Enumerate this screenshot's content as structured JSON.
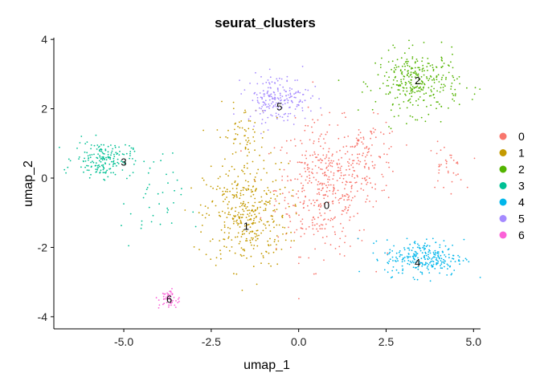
{
  "chart_data": {
    "type": "scatter",
    "title": "seurat_clusters",
    "xlabel": "umap_1",
    "ylabel": "umap_2",
    "xlim": [
      -7.0,
      5.2
    ],
    "ylim": [
      -4.35,
      4.05
    ],
    "x_ticks": [
      -5.0,
      -2.5,
      0.0,
      2.5,
      5.0
    ],
    "x_tick_labels": [
      "-5.0",
      "-2.5",
      "0.0",
      "2.5",
      "5.0"
    ],
    "y_ticks": [
      -4,
      -2,
      0,
      2,
      4
    ],
    "y_tick_labels": [
      "-4",
      "-2",
      "0",
      "2",
      "4"
    ],
    "grid": false,
    "legend_position": "right",
    "clusters": [
      {
        "name": "0",
        "color": "#F8766D",
        "label_x": 0.8,
        "label_y": -0.8
      },
      {
        "name": "1",
        "color": "#C49A00",
        "label_x": -1.5,
        "label_y": -1.4
      },
      {
        "name": "2",
        "color": "#53B400",
        "label_x": 3.4,
        "label_y": 2.8
      },
      {
        "name": "3",
        "color": "#00C094",
        "label_x": -5.0,
        "label_y": 0.45
      },
      {
        "name": "4",
        "color": "#00B6EB",
        "label_x": 3.4,
        "label_y": -2.45
      },
      {
        "name": "5",
        "color": "#A58AFF",
        "label_x": -0.55,
        "label_y": 2.05
      },
      {
        "name": "6",
        "color": "#FB61D7",
        "label_x": -3.7,
        "label_y": -3.5
      }
    ],
    "point_regions": [
      {
        "cluster": "0",
        "cx": 0.7,
        "cy": -0.3,
        "sx": 0.9,
        "sy": 1.25,
        "n": 420
      },
      {
        "cluster": "0",
        "cx": 2.0,
        "cy": 0.6,
        "sx": 0.6,
        "sy": 0.7,
        "n": 110
      },
      {
        "cluster": "0",
        "cx": 4.2,
        "cy": 0.3,
        "sx": 0.35,
        "sy": 0.45,
        "n": 35
      },
      {
        "cluster": "1",
        "cx": -1.5,
        "cy": -1.1,
        "sx": 0.8,
        "sy": 1.0,
        "n": 380
      },
      {
        "cluster": "1",
        "cx": -1.6,
        "cy": 1.2,
        "sx": 0.5,
        "sy": 0.6,
        "n": 70
      },
      {
        "cluster": "2",
        "cx": 3.4,
        "cy": 2.75,
        "sx": 0.8,
        "sy": 0.6,
        "n": 320
      },
      {
        "cluster": "3",
        "cx": -5.6,
        "cy": 0.55,
        "sx": 0.55,
        "sy": 0.35,
        "n": 180
      },
      {
        "cluster": "3",
        "cx": -4.2,
        "cy": -0.7,
        "sx": 0.6,
        "sy": 0.9,
        "n": 40
      },
      {
        "cluster": "4",
        "cx": 3.6,
        "cy": -2.3,
        "sx": 0.75,
        "sy": 0.35,
        "n": 260
      },
      {
        "cluster": "5",
        "cx": -0.6,
        "cy": 2.3,
        "sx": 0.6,
        "sy": 0.45,
        "n": 200
      },
      {
        "cluster": "6",
        "cx": -3.7,
        "cy": -3.5,
        "sx": 0.2,
        "sy": 0.2,
        "n": 50
      }
    ]
  },
  "colors": {
    "axis": "#000000",
    "background": "#ffffff"
  }
}
